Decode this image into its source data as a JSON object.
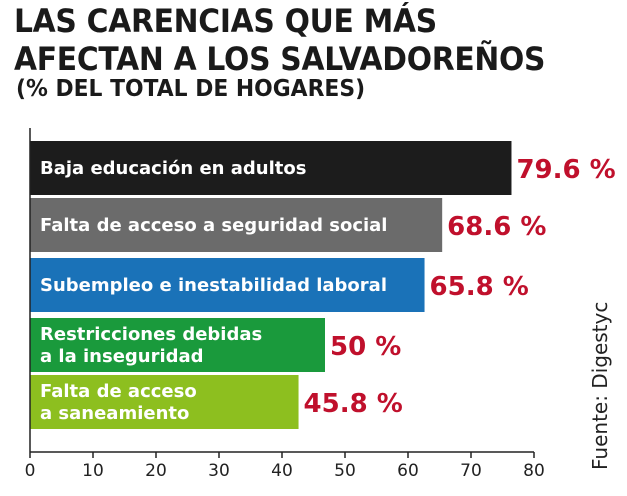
{
  "chart_data": {
    "type": "bar",
    "orientation": "horizontal",
    "title": "LAS CARENCIAS QUE MÁS AFECTAN A LOS SALVADOREÑOS",
    "subtitle": "(% DEL TOTAL DE HOGARES)",
    "source": "Fuente: Digestyc",
    "categories": [
      [
        "Baja educación en adultos"
      ],
      [
        "Falta de acceso a seguridad social"
      ],
      [
        "Subempleo e inestabilidad laboral"
      ],
      [
        "Restricciones debidas",
        "a la inseguridad"
      ],
      [
        "Falta de acceso",
        "a saneamiento"
      ]
    ],
    "values": [
      79.6,
      68.6,
      65.8,
      50,
      45.8
    ],
    "value_labels": [
      "79.6 %",
      "68.6 %",
      "65.8 %",
      "50 %",
      "45.8 %"
    ],
    "bar_colors": [
      "#1c1c1c",
      "#6b6b6b",
      "#1a72b8",
      "#1a9a3c",
      "#8dbf1f"
    ],
    "x_ticks": [
      "0",
      "10",
      "20",
      "30",
      "40",
      "50",
      "60",
      "70",
      "80"
    ],
    "xlim": [
      0,
      80
    ],
    "grid": false,
    "value_label_color": "#c0102c"
  }
}
